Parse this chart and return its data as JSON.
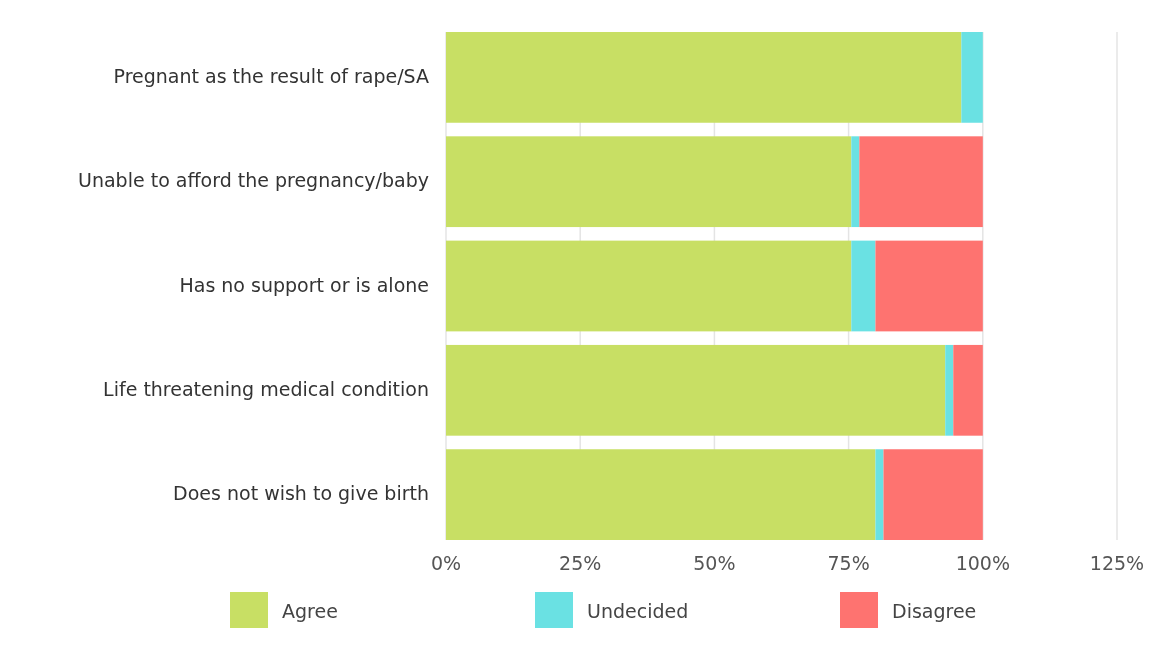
{
  "chart_data": {
    "type": "bar",
    "orientation": "horizontal",
    "stacked": true,
    "categories": [
      "Pregnant as the result of rape/SA",
      "Unable to afford the pregnancy/baby",
      "Has no support or is alone",
      "Life threatening medical condition",
      "Does not wish to give birth"
    ],
    "series": [
      {
        "name": "Agree",
        "color": "#c8df64",
        "values": [
          96,
          75.5,
          75.5,
          93,
          80
        ]
      },
      {
        "name": "Undecided",
        "color": "#6ae1e3",
        "values": [
          4,
          1.5,
          4.5,
          1.5,
          1.5
        ]
      },
      {
        "name": "Disagree",
        "color": "#fe7370",
        "values": [
          0,
          23,
          20,
          5.5,
          18.5
        ]
      }
    ],
    "xlim": [
      0,
      125
    ],
    "xticks": [
      {
        "value": 0,
        "label": "0%"
      },
      {
        "value": 25,
        "label": "25%"
      },
      {
        "value": 50,
        "label": "50%"
      },
      {
        "value": 75,
        "label": "75%"
      },
      {
        "value": 100,
        "label": "100%"
      },
      {
        "value": 125,
        "label": "125%"
      }
    ],
    "grid": "x",
    "legend": "bottom"
  }
}
